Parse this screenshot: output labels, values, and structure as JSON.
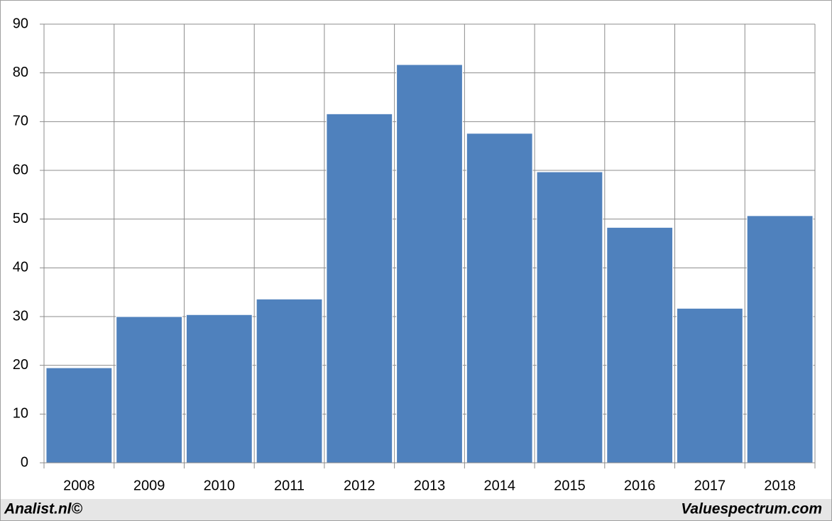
{
  "chart_data": {
    "type": "bar",
    "categories": [
      "2008",
      "2009",
      "2010",
      "2011",
      "2012",
      "2013",
      "2014",
      "2015",
      "2016",
      "2017",
      "2018"
    ],
    "values": [
      19.5,
      30.0,
      30.4,
      33.6,
      71.6,
      81.7,
      67.6,
      59.7,
      48.3,
      31.7,
      50.7
    ],
    "color": "#4f81bd",
    "ylim": [
      0,
      90
    ],
    "yticks": [
      0,
      10,
      20,
      30,
      40,
      50,
      60,
      70,
      80,
      90
    ],
    "grid": true,
    "annotations": [
      "Analist.nl©",
      "Valuespectrum.com"
    ]
  }
}
